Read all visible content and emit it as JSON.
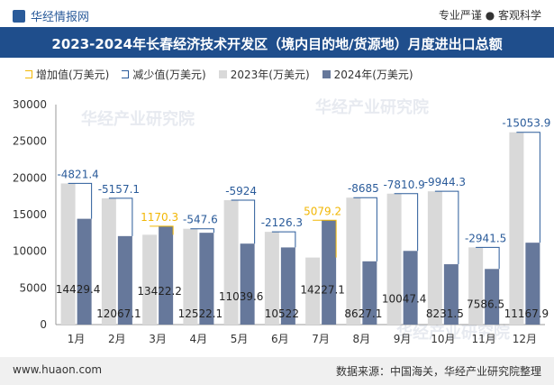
{
  "header": {
    "brand": "华经情报网",
    "slogan": "专业严谨 ● 客观科学",
    "title": "2023-2024年长春经济技术开发区（境内目的地/货源地）月度进出口总额"
  },
  "legend": {
    "increase": "增加值(万美元)",
    "decrease": "减少值(万美元)",
    "y2023": "2023年(万美元)",
    "y2024": "2024年(万美元)"
  },
  "watermark": "华经产业研究院",
  "footer": {
    "url": "www.huaon.com",
    "source": "数据来源：中国海关，华经产业研究院整理"
  },
  "chart_data": {
    "type": "bar",
    "categories": [
      "1月",
      "2月",
      "3月",
      "4月",
      "5月",
      "6月",
      "7月",
      "8月",
      "9月",
      "10月",
      "11月",
      "12月"
    ],
    "series": [
      {
        "name": "2023年(万美元)",
        "values": [
          19250.8,
          17224.2,
          12251.9,
          13069.7,
          16963.6,
          12648.3,
          9147.9,
          17312.1,
          17858.3,
          18175.8,
          10528.0,
          26221.8
        ],
        "color": "#d9d9d9"
      },
      {
        "name": "2024年(万美元)",
        "values": [
          14429.4,
          12067.1,
          13422.2,
          12522.1,
          11039.6,
          10522,
          14227.1,
          8627.1,
          10047.4,
          8231.5,
          7586.5,
          11167.9
        ],
        "color": "#66789b"
      }
    ],
    "change": [
      "-4821.4",
      "-5157.1",
      "1170.3",
      "-547.6",
      "-5924",
      "-2126.3",
      "5079.2",
      "-8685",
      "-7810.9",
      "-9944.3",
      "-2941.5",
      "-15053.9"
    ],
    "ylim": [
      0,
      30000
    ],
    "yticks": [
      0,
      5000,
      10000,
      15000,
      20000,
      25000,
      30000
    ],
    "increase_color": "#f2b705",
    "decrease_color": "#2a5b9a"
  }
}
